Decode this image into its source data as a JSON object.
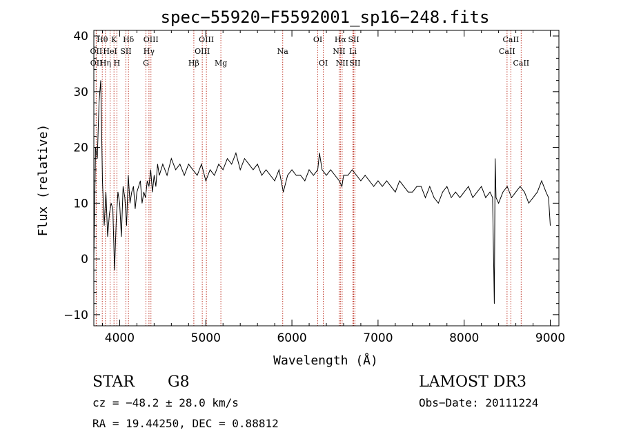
{
  "chart_data": {
    "type": "line",
    "title": "spec−55920−F5592001_sp16−248.fits",
    "xlabel": "Wavelength (Å)",
    "ylabel": "Flux (relative)",
    "xlim": [
      3700,
      9100
    ],
    "ylim": [
      -12,
      41
    ],
    "xticks": [
      4000,
      5000,
      6000,
      7000,
      8000,
      9000
    ],
    "yticks": [
      -10,
      0,
      10,
      20,
      30,
      40
    ],
    "ytick_labels": [
      "−10",
      "0",
      "10",
      "20",
      "30",
      "40"
    ],
    "grid": false,
    "series": [
      {
        "name": "spectrum",
        "color": "#000000",
        "x": [
          3700,
          3720,
          3740,
          3760,
          3780,
          3800,
          3820,
          3840,
          3860,
          3880,
          3900,
          3920,
          3940,
          3960,
          3980,
          4000,
          4020,
          4040,
          4060,
          4080,
          4100,
          4120,
          4140,
          4160,
          4180,
          4200,
          4220,
          4240,
          4260,
          4280,
          4300,
          4320,
          4340,
          4360,
          4380,
          4400,
          4420,
          4440,
          4460,
          4480,
          4500,
          4550,
          4600,
          4650,
          4700,
          4750,
          4800,
          4850,
          4900,
          4950,
          5000,
          5050,
          5100,
          5150,
          5200,
          5250,
          5300,
          5350,
          5400,
          5450,
          5500,
          5550,
          5600,
          5650,
          5700,
          5750,
          5800,
          5850,
          5900,
          5950,
          6000,
          6050,
          6100,
          6150,
          6200,
          6250,
          6300,
          6320,
          6350,
          6400,
          6450,
          6500,
          6550,
          6580,
          6600,
          6650,
          6700,
          6750,
          6800,
          6850,
          6900,
          6950,
          7000,
          7050,
          7100,
          7150,
          7200,
          7250,
          7300,
          7350,
          7400,
          7450,
          7500,
          7550,
          7600,
          7650,
          7700,
          7750,
          7800,
          7850,
          7900,
          7950,
          8000,
          8050,
          8100,
          8150,
          8200,
          8250,
          8300,
          8330,
          8350,
          8360,
          8370,
          8400,
          8450,
          8500,
          8550,
          8600,
          8650,
          8700,
          8750,
          8800,
          8850,
          8900,
          8950,
          8980,
          9000
        ],
        "y": [
          0,
          20,
          18,
          28,
          32,
          14,
          6,
          12,
          4,
          8,
          10,
          9,
          -2,
          7,
          12,
          10,
          4,
          13,
          11,
          6,
          15,
          10,
          12,
          13,
          9,
          12,
          13,
          14,
          10,
          12,
          11,
          14,
          13,
          16,
          12,
          15,
          13,
          17,
          15,
          16,
          17,
          15,
          18,
          16,
          17,
          15,
          17,
          16,
          15,
          17,
          14,
          16,
          15,
          17,
          16,
          18,
          17,
          19,
          16,
          18,
          17,
          16,
          17,
          15,
          16,
          15,
          14,
          16,
          12,
          15,
          16,
          15,
          15,
          14,
          16,
          15,
          16,
          19,
          16,
          15,
          16,
          15,
          14,
          13,
          15,
          15,
          16,
          15,
          14,
          15,
          14,
          13,
          14,
          13,
          14,
          13,
          12,
          14,
          13,
          12,
          12,
          13,
          13,
          11,
          13,
          11,
          10,
          12,
          13,
          11,
          12,
          11,
          12,
          13,
          11,
          12,
          13,
          11,
          12,
          11,
          -8,
          18,
          11,
          10,
          12,
          13,
          11,
          12,
          13,
          12,
          10,
          11,
          12,
          14,
          12,
          11,
          6
        ]
      }
    ]
  },
  "spectral_lines": {
    "line_color": "#c0392b",
    "lines": [
      {
        "name": "OII",
        "wavelength": 3727,
        "row": 2
      },
      {
        "name": "OII",
        "wavelength": 3729,
        "row": 3
      },
      {
        "name": "Hθ",
        "wavelength": 3798,
        "row": 1
      },
      {
        "name": "Hη",
        "wavelength": 3835,
        "row": 3
      },
      {
        "name": "K",
        "wavelength": 3934,
        "row": 1
      },
      {
        "name": "HeI",
        "wavelength": 3889,
        "row": 2
      },
      {
        "name": "H",
        "wavelength": 3968,
        "row": 3
      },
      {
        "name": "SII",
        "wavelength": 4072,
        "row": 2
      },
      {
        "name": "Hδ",
        "wavelength": 4102,
        "row": 1
      },
      {
        "name": "OIII",
        "wavelength": 4363,
        "row": 1
      },
      {
        "name": "Hγ",
        "wavelength": 4340,
        "row": 2
      },
      {
        "name": "G",
        "wavelength": 4305,
        "row": 3
      },
      {
        "name": "Hβ",
        "wavelength": 4861,
        "row": 3
      },
      {
        "name": "OIII",
        "wavelength": 4959,
        "row": 2
      },
      {
        "name": "OIII",
        "wavelength": 5007,
        "row": 1
      },
      {
        "name": "Mg",
        "wavelength": 5175,
        "row": 3
      },
      {
        "name": "Na",
        "wavelength": 5893,
        "row": 2
      },
      {
        "name": "OI",
        "wavelength": 6300,
        "row": 1
      },
      {
        "name": "OI",
        "wavelength": 6364,
        "row": 3
      },
      {
        "name": "NII",
        "wavelength": 6548,
        "row": 2
      },
      {
        "name": "Hα",
        "wavelength": 6563,
        "row": 1
      },
      {
        "name": "NII",
        "wavelength": 6583,
        "row": 3
      },
      {
        "name": "SII",
        "wavelength": 6717,
        "row": 1
      },
      {
        "name": "Li",
        "wavelength": 6708,
        "row": 2
      },
      {
        "name": "SII",
        "wavelength": 6731,
        "row": 3
      },
      {
        "name": "CaII",
        "wavelength": 8498,
        "row": 2
      },
      {
        "name": "CaII",
        "wavelength": 8542,
        "row": 1
      },
      {
        "name": "CaII",
        "wavelength": 8662,
        "row": 3
      }
    ]
  },
  "info": {
    "class": "STAR",
    "subclass": "G8",
    "survey": "LAMOST DR3",
    "cz": "cz = −48.2 ± 28.0 km/s",
    "obs_date": "Obs−Date: 20111224",
    "coords": "RA =  19.44250, DEC =   0.88812"
  }
}
